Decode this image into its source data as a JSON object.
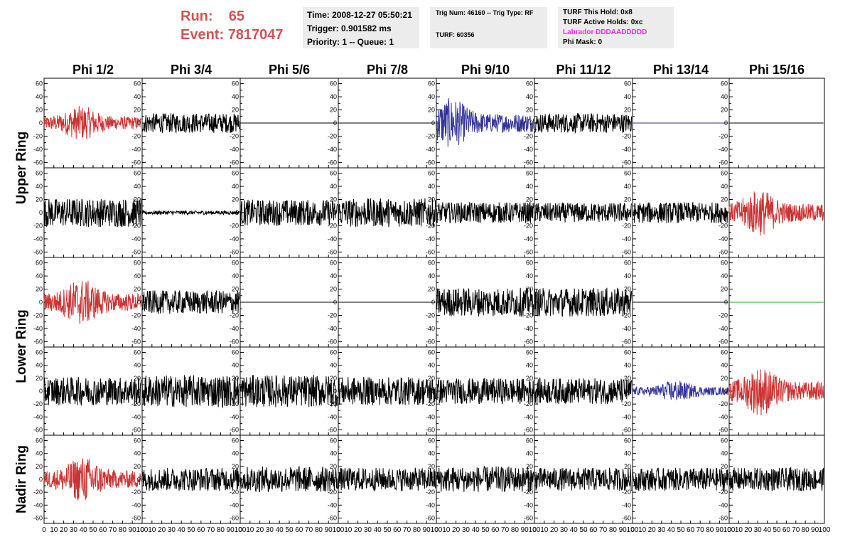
{
  "header": {
    "run_label": "Run:",
    "run_value": "65",
    "event_label": "Event:",
    "event_value": "7817047"
  },
  "info_time": {
    "time": "Time: 2008-12-27 05:50:21",
    "trigger": "Trigger: 0.901582 ms",
    "priority": "Priority: 1 -- Queue: 1"
  },
  "info_trig": {
    "trig": "Trig Num: 46160 -- Trig Type: RF",
    "turf": "TURF: 60356"
  },
  "info_turf": {
    "hold": "TURF This Hold: 0x8",
    "active": "TURF Active Holds: 0xc",
    "labrador": "Labrador DDDAADDDDD",
    "phimask": "Phi Mask: 0"
  },
  "chart_data": {
    "type": "line",
    "columns": [
      "Phi 1/2",
      "Phi 3/4",
      "Phi 5/6",
      "Phi 7/8",
      "Phi 9/10",
      "Phi 11/12",
      "Phi 13/14",
      "Phi 15/16"
    ],
    "ring_labels": [
      {
        "text": "Upper Ring",
        "rows": [
          0,
          1
        ]
      },
      {
        "text": "Lower Ring",
        "rows": [
          2,
          3
        ]
      },
      {
        "text": "Nadir Ring",
        "rows": [
          4
        ]
      }
    ],
    "xlim": [
      0,
      100
    ],
    "ylim": [
      -65,
      65
    ],
    "xticks": [
      "0",
      "10",
      "20",
      "30",
      "40",
      "50",
      "60",
      "70",
      "80",
      "90",
      "100"
    ],
    "yticks": [
      "60",
      "40",
      "20",
      "0",
      "-20",
      "-40",
      "-60"
    ],
    "colors": {
      "red": "#cc3333",
      "blue": "#333399",
      "green": "#22aa22",
      "black": "#000000"
    },
    "panels": [
      [
        {
          "color": "red",
          "amp": 22,
          "peak": 38,
          "flat": false
        },
        {
          "color": "black",
          "amp": 15,
          "peak": null,
          "flat": false
        },
        {
          "color": "black",
          "amp": 0,
          "peak": null,
          "flat": true
        },
        {
          "color": "black",
          "amp": 0,
          "peak": null,
          "flat": true
        },
        {
          "color": "blue",
          "amp": 32,
          "peak": 15,
          "flat": false
        },
        {
          "color": "black",
          "amp": 15,
          "peak": null,
          "flat": false
        },
        {
          "color": "blue",
          "amp": 0,
          "peak": null,
          "flat": true
        },
        {
          "color": "black",
          "amp": 0,
          "peak": null,
          "flat": true
        }
      ],
      [
        {
          "color": "black",
          "amp": 22,
          "peak": null,
          "flat": false
        },
        {
          "color": "black",
          "amp": 3,
          "peak": null,
          "flat": false
        },
        {
          "color": "black",
          "amp": 20,
          "peak": null,
          "flat": false
        },
        {
          "color": "black",
          "amp": 22,
          "peak": null,
          "flat": false
        },
        {
          "color": "black",
          "amp": 16,
          "peak": null,
          "flat": false
        },
        {
          "color": "black",
          "amp": 15,
          "peak": null,
          "flat": false
        },
        {
          "color": "black",
          "amp": 16,
          "peak": null,
          "flat": false
        },
        {
          "color": "red",
          "amp": 30,
          "peak": 32,
          "flat": false
        }
      ],
      [
        {
          "color": "red",
          "amp": 30,
          "peak": 38,
          "flat": false
        },
        {
          "color": "black",
          "amp": 18,
          "peak": null,
          "flat": false
        },
        {
          "color": "black",
          "amp": 0,
          "peak": null,
          "flat": true
        },
        {
          "color": "black",
          "amp": 0,
          "peak": null,
          "flat": true
        },
        {
          "color": "black",
          "amp": 22,
          "peak": null,
          "flat": false
        },
        {
          "color": "black",
          "amp": 22,
          "peak": null,
          "flat": false
        },
        {
          "color": "black",
          "amp": 0,
          "peak": null,
          "flat": true
        },
        {
          "color": "green",
          "amp": 0,
          "peak": null,
          "flat": true
        }
      ],
      [
        {
          "color": "black",
          "amp": 22,
          "peak": null,
          "flat": false
        },
        {
          "color": "black",
          "amp": 25,
          "peak": null,
          "flat": false
        },
        {
          "color": "black",
          "amp": 25,
          "peak": null,
          "flat": false
        },
        {
          "color": "black",
          "amp": 22,
          "peak": null,
          "flat": false
        },
        {
          "color": "black",
          "amp": 20,
          "peak": null,
          "flat": false
        },
        {
          "color": "black",
          "amp": 20,
          "peak": null,
          "flat": false
        },
        {
          "color": "blue",
          "amp": 14,
          "peak": 45,
          "flat": false
        },
        {
          "color": "red",
          "amp": 32,
          "peak": 33,
          "flat": false
        }
      ],
      [
        {
          "color": "red",
          "amp": 30,
          "peak": 40,
          "flat": false
        },
        {
          "color": "black",
          "amp": 18,
          "peak": null,
          "flat": false
        },
        {
          "color": "black",
          "amp": 20,
          "peak": null,
          "flat": false
        },
        {
          "color": "black",
          "amp": 18,
          "peak": null,
          "flat": false
        },
        {
          "color": "black",
          "amp": 20,
          "peak": null,
          "flat": false
        },
        {
          "color": "black",
          "amp": 18,
          "peak": null,
          "flat": false
        },
        {
          "color": "black",
          "amp": 18,
          "peak": null,
          "flat": false
        },
        {
          "color": "black",
          "amp": 18,
          "peak": null,
          "flat": false
        }
      ]
    ]
  }
}
